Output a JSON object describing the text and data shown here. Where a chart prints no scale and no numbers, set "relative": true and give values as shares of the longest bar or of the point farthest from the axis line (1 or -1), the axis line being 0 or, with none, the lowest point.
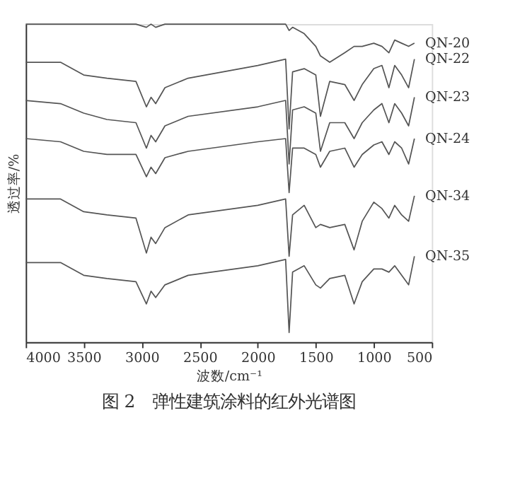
{
  "chart_data": {
    "type": "line",
    "title": "图 2　弹性建筑涂料的红外光谱图",
    "xlabel": "波数/cm⁻¹",
    "ylabel": "透过率/%",
    "relative": true,
    "x": [
      4000,
      3700,
      3500,
      3300,
      3050,
      2960,
      2920,
      2880,
      2800,
      2600,
      2000,
      1760,
      1730,
      1700,
      1600,
      1500,
      1460,
      1380,
      1250,
      1170,
      1100,
      1000,
      930,
      870,
      820,
      760,
      700,
      650
    ],
    "xlim": [
      4000,
      500
    ],
    "xticks": [
      4000,
      3500,
      3000,
      2500,
      2000,
      1500,
      1000,
      500
    ],
    "grid": false,
    "legend": false,
    "marker": "none",
    "line_style": "solid",
    "series": [
      {
        "name": "QN-20",
        "color": "#555555",
        "values": [
          1.0,
          1.0,
          1.0,
          1.0,
          1.0,
          0.99,
          1.0,
          0.99,
          1.0,
          1.0,
          1.0,
          1.0,
          0.98,
          0.99,
          0.97,
          0.93,
          0.9,
          0.88,
          0.91,
          0.93,
          0.93,
          0.94,
          0.93,
          0.91,
          0.95,
          0.94,
          0.93,
          0.94
        ]
      },
      {
        "name": "QN-22",
        "color": "#555555",
        "values": [
          0.88,
          0.88,
          0.84,
          0.83,
          0.82,
          0.74,
          0.77,
          0.75,
          0.8,
          0.83,
          0.87,
          0.89,
          0.67,
          0.85,
          0.86,
          0.84,
          0.71,
          0.82,
          0.81,
          0.76,
          0.81,
          0.86,
          0.87,
          0.8,
          0.87,
          0.84,
          0.8,
          0.89
        ]
      },
      {
        "name": "QN-23",
        "color": "#555555",
        "values": [
          0.76,
          0.75,
          0.72,
          0.7,
          0.69,
          0.61,
          0.65,
          0.63,
          0.68,
          0.71,
          0.74,
          0.76,
          0.56,
          0.73,
          0.74,
          0.72,
          0.6,
          0.69,
          0.69,
          0.64,
          0.69,
          0.73,
          0.75,
          0.69,
          0.75,
          0.72,
          0.68,
          0.77
        ]
      },
      {
        "name": "QN-24",
        "color": "#555555",
        "values": [
          0.64,
          0.63,
          0.6,
          0.59,
          0.59,
          0.52,
          0.55,
          0.53,
          0.58,
          0.6,
          0.63,
          0.64,
          0.47,
          0.61,
          0.61,
          0.59,
          0.55,
          0.6,
          0.61,
          0.55,
          0.59,
          0.62,
          0.63,
          0.59,
          0.63,
          0.61,
          0.56,
          0.64
        ]
      },
      {
        "name": "QN-34",
        "color": "#555555",
        "values": [
          0.45,
          0.45,
          0.41,
          0.4,
          0.39,
          0.28,
          0.33,
          0.31,
          0.36,
          0.4,
          0.43,
          0.45,
          0.27,
          0.4,
          0.43,
          0.36,
          0.37,
          0.36,
          0.37,
          0.29,
          0.38,
          0.44,
          0.42,
          0.39,
          0.43,
          0.4,
          0.38,
          0.46
        ]
      },
      {
        "name": "QN-35",
        "color": "#555555",
        "values": [
          0.25,
          0.25,
          0.21,
          0.2,
          0.19,
          0.12,
          0.16,
          0.14,
          0.18,
          0.21,
          0.24,
          0.26,
          0.03,
          0.22,
          0.24,
          0.18,
          0.17,
          0.2,
          0.21,
          0.12,
          0.19,
          0.23,
          0.23,
          0.22,
          0.24,
          0.21,
          0.18,
          0.27
        ]
      }
    ]
  }
}
